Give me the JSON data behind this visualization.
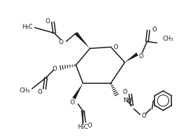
{
  "bg_color": "#ffffff",
  "lc": "#1a1a1a",
  "lw": 1.1,
  "fs": 6.5,
  "figsize": [
    2.52,
    2.01
  ],
  "dpi": 100,
  "xlim": [
    0,
    252
  ],
  "ylim": [
    0,
    201
  ]
}
